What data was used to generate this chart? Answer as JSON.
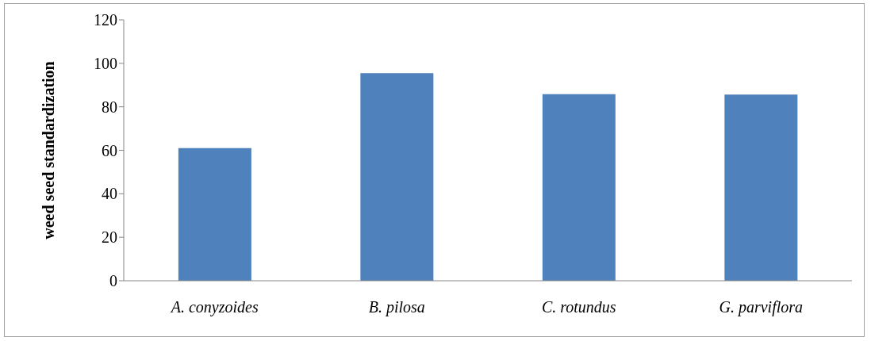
{
  "chart_data": {
    "type": "bar",
    "ylabel": "weed seed standardization",
    "categories": [
      "A. conyzoides",
      "B. pilosa",
      "C. rotundus",
      "G. parviflora"
    ],
    "values": [
      61,
      95.5,
      85.8,
      85.6
    ],
    "color": "#4f81bd",
    "ylim": [
      0,
      120
    ],
    "yticks": [
      0,
      20,
      40,
      60,
      80,
      100,
      120
    ],
    "grid": false
  }
}
